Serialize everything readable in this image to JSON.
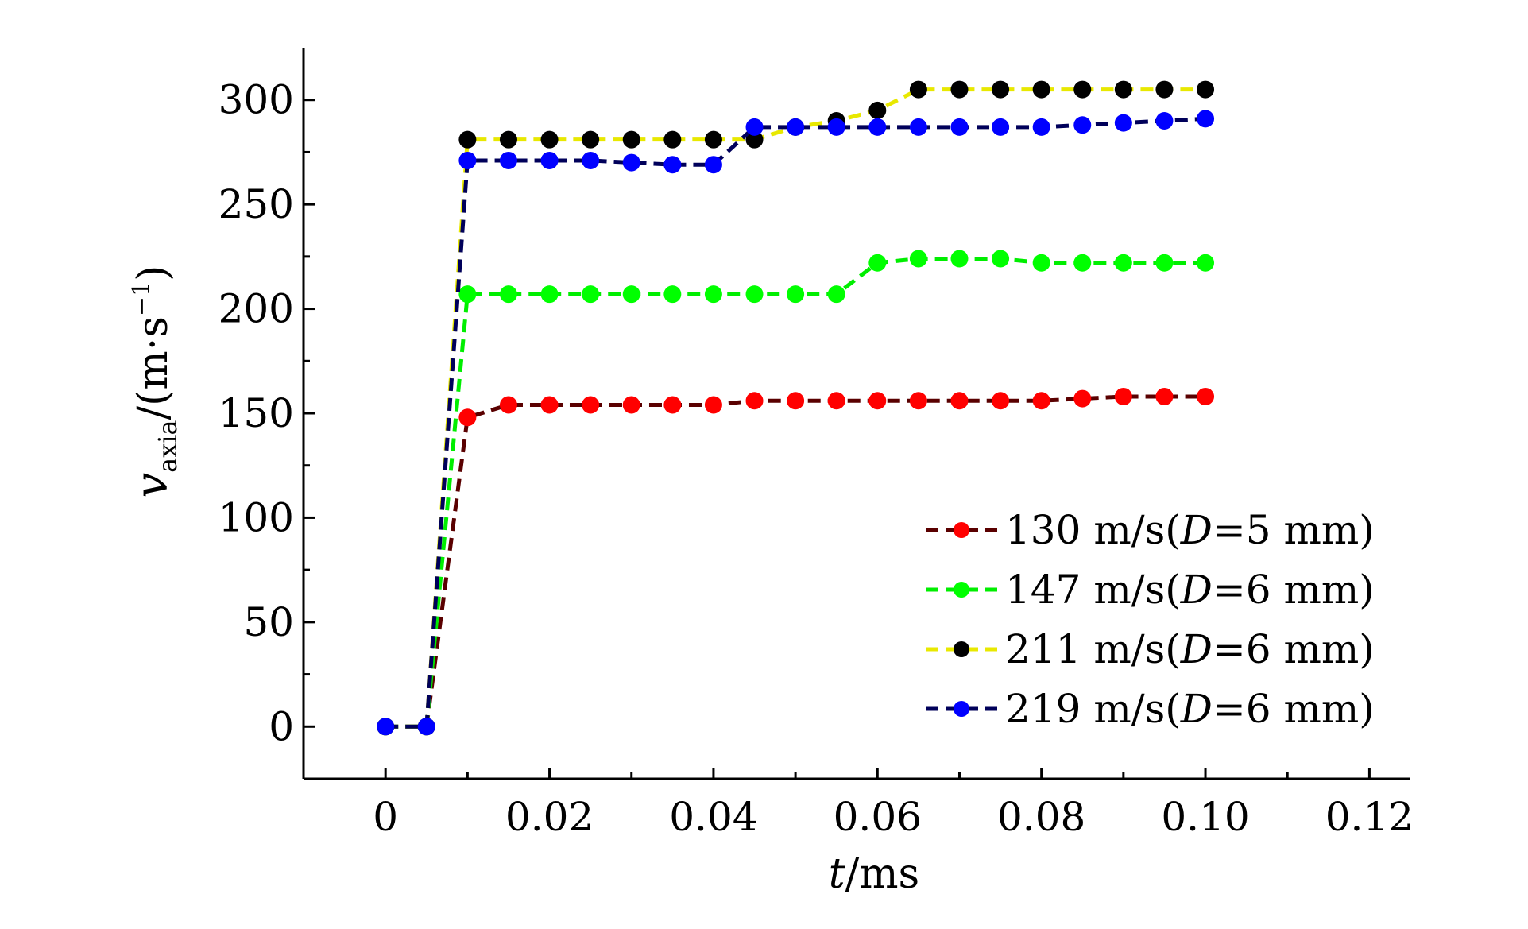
{
  "chart_data": {
    "type": "line",
    "xlabel": {
      "var": "t",
      "unit": "/ms"
    },
    "ylabel": {
      "var": "v",
      "sub": "axia",
      "unit": "/(m·s",
      "sup": "−1",
      "close": ")"
    },
    "xlim": [
      -0.01,
      0.125
    ],
    "ylim": [
      -25,
      325
    ],
    "xticks": [
      0,
      0.02,
      0.04,
      0.06,
      0.08,
      0.1,
      0.12
    ],
    "xtick_labels": [
      "0",
      "0.02",
      "0.04",
      "0.06",
      "0.08",
      "0.10",
      "0.12"
    ],
    "yticks": [
      0,
      50,
      100,
      150,
      200,
      250,
      300
    ],
    "ytick_labels": [
      "0",
      "50",
      "100",
      "150",
      "200",
      "250",
      "300"
    ],
    "legend_position": "bottom-right",
    "x": [
      0,
      0.005,
      0.01,
      0.015,
      0.02,
      0.025,
      0.03,
      0.035,
      0.04,
      0.045,
      0.05,
      0.055,
      0.06,
      0.065,
      0.07,
      0.075,
      0.08,
      0.085,
      0.09,
      0.095,
      0.1
    ],
    "series": [
      {
        "name": "130 m/s(D=5 mm)",
        "legend": {
          "pre": "130 m/s(",
          "italic": "D",
          "post": "=5 mm)"
        },
        "color": "#ff0000",
        "line_color": "#5a0000",
        "values": [
          0,
          0,
          148,
          154,
          154,
          154,
          154,
          154,
          154,
          156,
          156,
          156,
          156,
          156,
          156,
          156,
          156,
          157,
          158,
          158,
          158
        ]
      },
      {
        "name": "147 m/s(D=6 mm)",
        "legend": {
          "pre": "147 m/s(",
          "italic": "D",
          "post": "=6 mm)"
        },
        "color": "#00ff00",
        "line_color": "#00ee00",
        "values": [
          0,
          0,
          207,
          207,
          207,
          207,
          207,
          207,
          207,
          207,
          207,
          207,
          222,
          224,
          224,
          224,
          222,
          222,
          222,
          222,
          222
        ]
      },
      {
        "name": "211 m/s(D=6 mm)",
        "legend": {
          "pre": "211 m/s(",
          "italic": "D",
          "post": "=6 mm)"
        },
        "color": "#000000",
        "line_color": "#e8e800",
        "values": [
          0,
          0,
          281,
          281,
          281,
          281,
          281,
          281,
          281,
          281,
          287,
          290,
          295,
          305,
          305,
          305,
          305,
          305,
          305,
          305,
          305
        ]
      },
      {
        "name": "219 m/s(D=6 mm)",
        "legend": {
          "pre": "219 m/s(",
          "italic": "D",
          "post": "=6 mm)"
        },
        "color": "#0000ff",
        "line_color": "#00005a",
        "values": [
          0,
          0,
          271,
          271,
          271,
          271,
          270,
          269,
          269,
          287,
          287,
          287,
          287,
          287,
          287,
          287,
          287,
          288,
          289,
          290,
          291
        ]
      }
    ]
  }
}
